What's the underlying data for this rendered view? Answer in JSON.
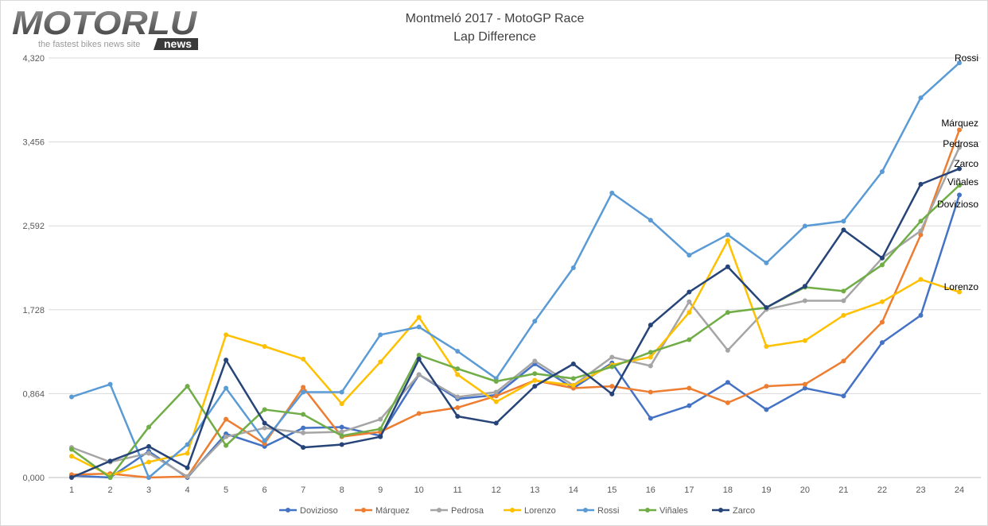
{
  "logo": {
    "brand": "MOTORLU",
    "tagline": "the fastest bikes news site",
    "badge": "news"
  },
  "chart_data": {
    "type": "line",
    "title": "Montmeló 2017 - MotoGP Race",
    "subtitle": "Lap Difference",
    "xlabel": "",
    "ylabel": "",
    "x": [
      1,
      2,
      3,
      4,
      5,
      6,
      7,
      8,
      9,
      10,
      11,
      12,
      13,
      14,
      15,
      16,
      17,
      18,
      19,
      20,
      21,
      22,
      23,
      24
    ],
    "ylim": [
      0,
      4.32
    ],
    "yticks": [
      0,
      0.864,
      1.728,
      2.592,
      3.456,
      4.32
    ],
    "ytick_labels": [
      "0,000",
      "0,864",
      "1,728",
      "2,592",
      "3,456",
      "4,320"
    ],
    "grid": true,
    "legend": "bottom",
    "series": [
      {
        "name": "Dovizioso",
        "color": "#4472C4",
        "values": [
          0.02,
          0,
          0.27,
          0,
          0.45,
          0.32,
          0.51,
          0.52,
          0.43,
          1.06,
          0.81,
          0.85,
          1.17,
          0.92,
          1.18,
          0.61,
          0.74,
          0.98,
          0.7,
          0.92,
          0.84,
          1.39,
          1.67,
          2.91
        ]
      },
      {
        "name": "Márquez",
        "color": "#ED7D31",
        "values": [
          0.03,
          0.04,
          0,
          0.01,
          0.6,
          0.35,
          0.93,
          0.42,
          0.47,
          0.66,
          0.72,
          0.84,
          1.0,
          0.92,
          0.94,
          0.88,
          0.92,
          0.77,
          0.94,
          0.96,
          1.2,
          1.6,
          2.5,
          3.58
        ]
      },
      {
        "name": "Pedrosa",
        "color": "#A5A5A5",
        "values": [
          0.31,
          0.16,
          0.25,
          0.01,
          0.42,
          0.51,
          0.46,
          0.47,
          0.6,
          1.06,
          0.83,
          0.88,
          1.2,
          0.95,
          1.24,
          1.15,
          1.81,
          1.31,
          1.73,
          1.82,
          1.82,
          2.26,
          2.54,
          3.4
        ]
      },
      {
        "name": "Lorenzo",
        "color": "#FFC000",
        "values": [
          0.22,
          0.02,
          0.16,
          0.25,
          1.47,
          1.35,
          1.22,
          0.76,
          1.19,
          1.65,
          1.06,
          0.78,
          1.0,
          0.95,
          1.16,
          1.24,
          1.7,
          2.44,
          1.35,
          1.41,
          1.67,
          1.81,
          2.04,
          1.91
        ]
      },
      {
        "name": "Rossi",
        "color": "#5B9BD5",
        "values": [
          0.83,
          0.96,
          0,
          0.34,
          0.92,
          0.38,
          0.88,
          0.88,
          1.47,
          1.55,
          1.3,
          1.02,
          1.61,
          2.16,
          2.93,
          2.65,
          2.29,
          2.5,
          2.21,
          2.59,
          2.64,
          3.15,
          3.91,
          4.27
        ]
      },
      {
        "name": "Viñales",
        "color": "#70AD47",
        "values": [
          0.29,
          0,
          0.52,
          0.94,
          0.33,
          0.7,
          0.65,
          0.43,
          0.5,
          1.26,
          1.12,
          0.99,
          1.07,
          1.02,
          1.14,
          1.29,
          1.42,
          1.7,
          1.75,
          1.96,
          1.92,
          2.19,
          2.64,
          3.01
        ]
      },
      {
        "name": "Zarco",
        "color": "#264478",
        "values": [
          0,
          0.17,
          0.32,
          0.1,
          1.21,
          0.56,
          0.31,
          0.34,
          0.42,
          1.22,
          0.63,
          0.56,
          0.94,
          1.17,
          0.86,
          1.57,
          1.91,
          2.17,
          1.75,
          1.97,
          2.55,
          2.26,
          3.02,
          3.18
        ]
      }
    ]
  }
}
